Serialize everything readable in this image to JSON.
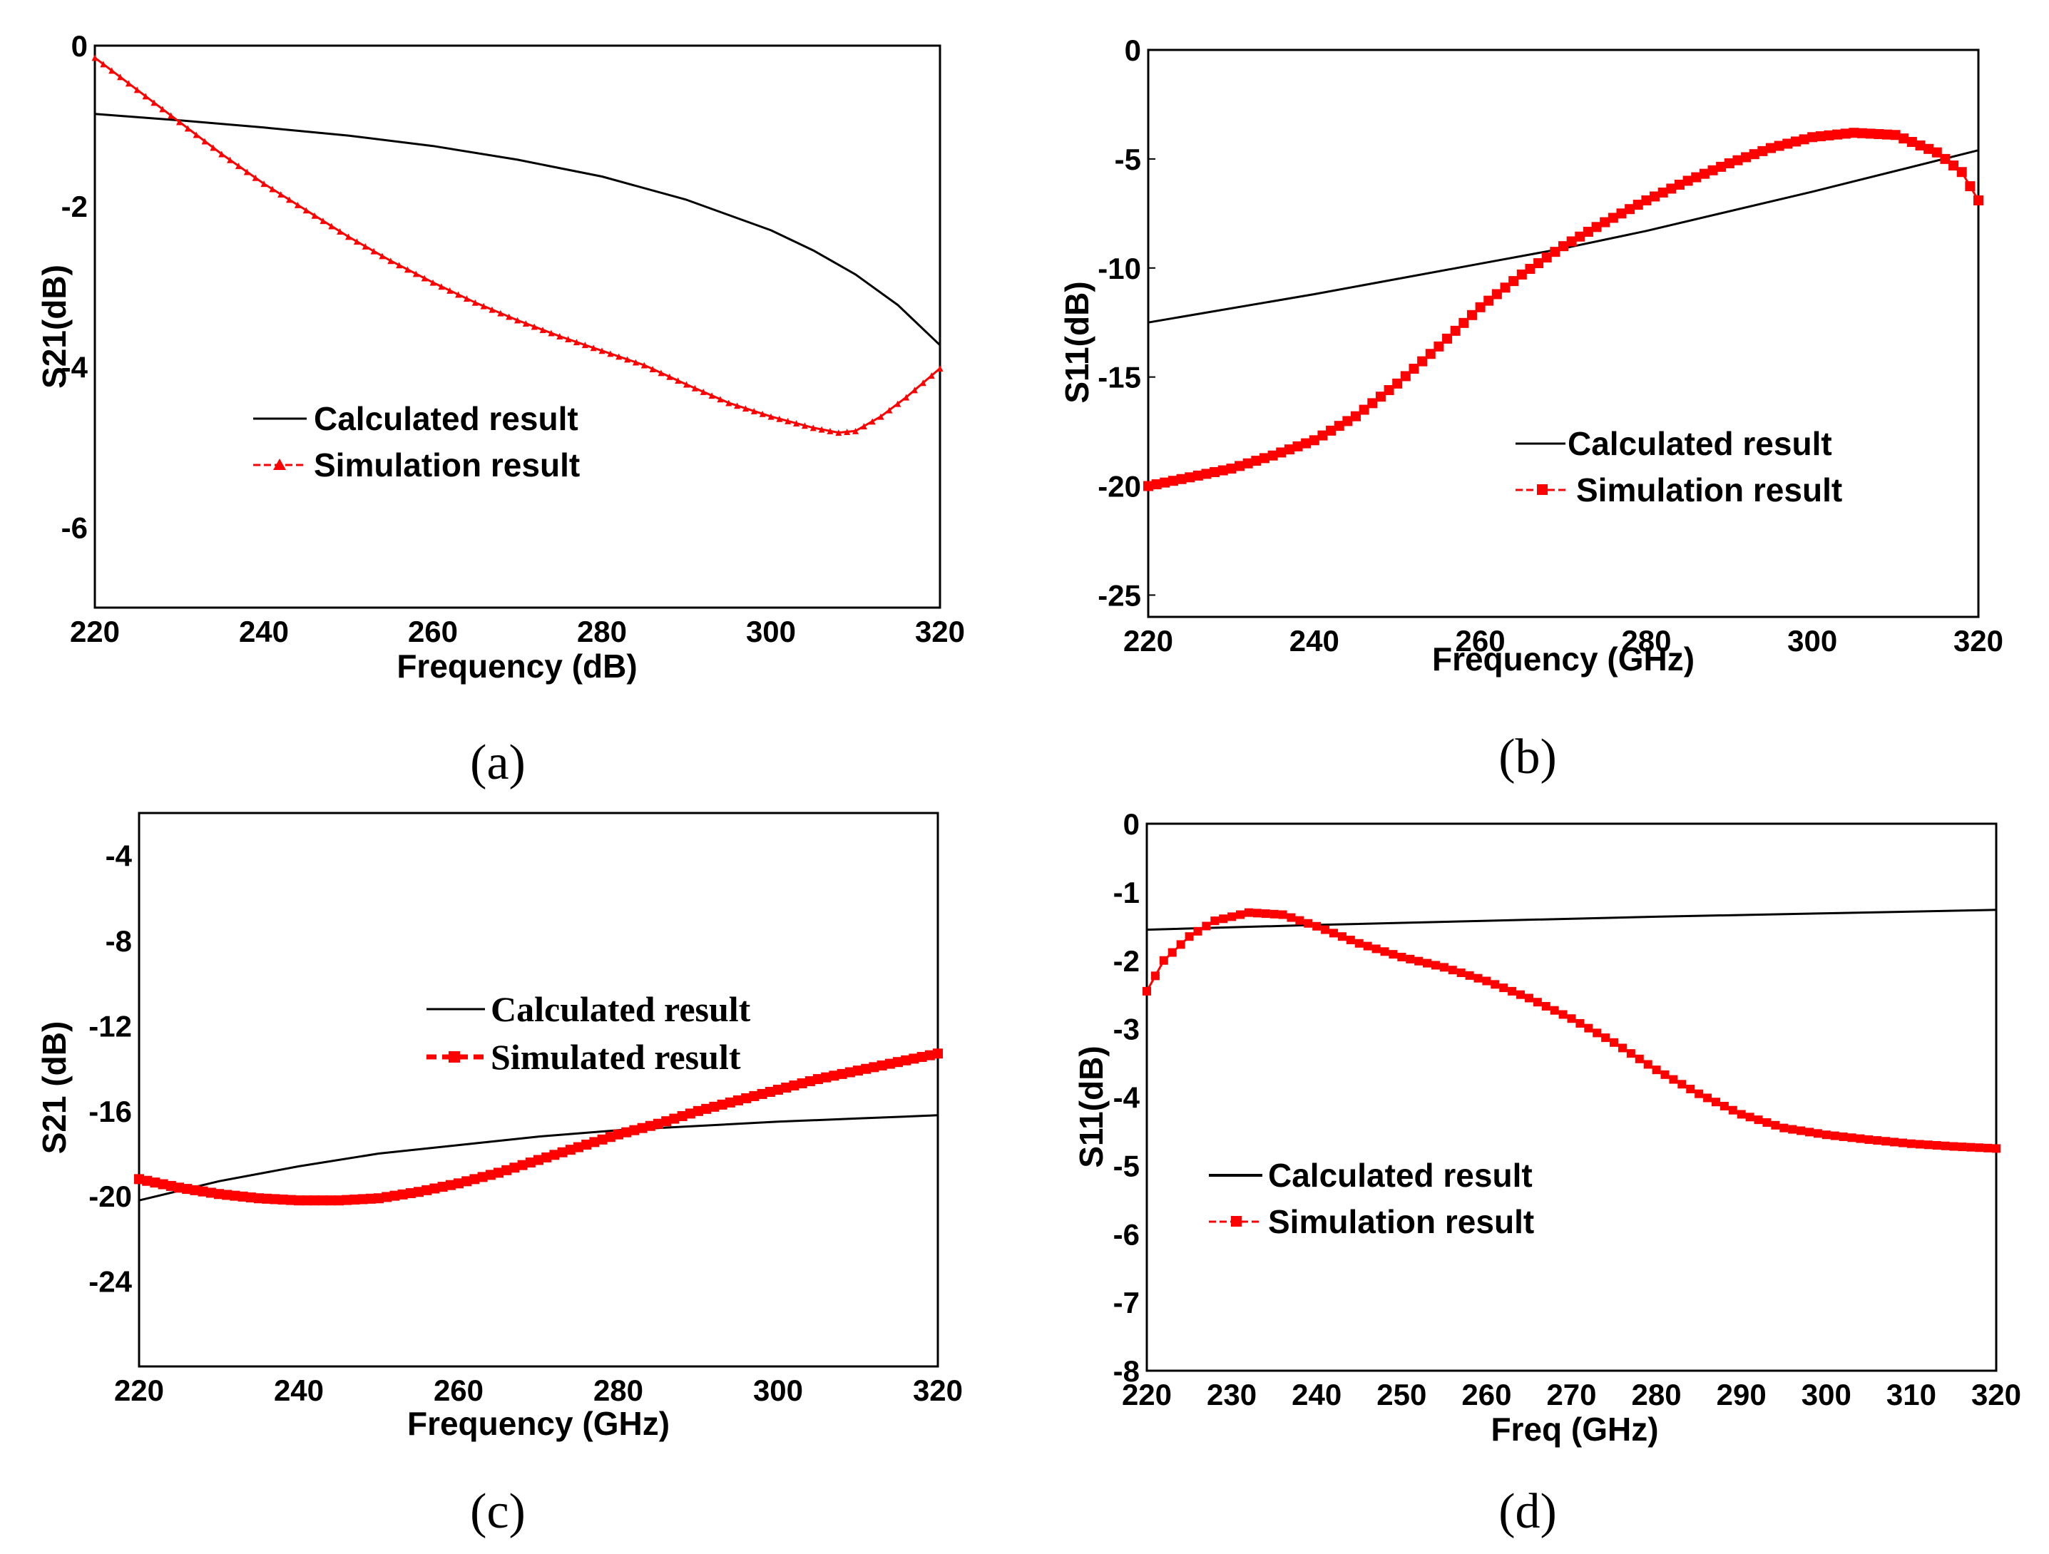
{
  "colors": {
    "calculated": "#000000",
    "simulation": "#ff0000",
    "axis": "#000000",
    "background": "#ffffff"
  },
  "chart_data": [
    {
      "type": "line",
      "panel_label": "(a)",
      "xlabel": "Frequency (dB)",
      "ylabel": "S21(dB)",
      "xlim": [
        220,
        320
      ],
      "ylim": [
        -7,
        0
      ],
      "xticks": [
        220,
        240,
        260,
        280,
        300,
        320
      ],
      "xtick_labels": [
        "220",
        "240",
        "260",
        "280",
        "300",
        "320"
      ],
      "yticks": [
        0,
        -2,
        -4,
        -6
      ],
      "ytick_labels": [
        "0",
        "-2",
        "-4",
        "-6"
      ],
      "legend": {
        "calculated": "Calculated result",
        "simulation": "Simulation result"
      },
      "series": [
        {
          "name": "Calculated result",
          "style": "line",
          "x": [
            220,
            230,
            240,
            250,
            260,
            270,
            280,
            290,
            300,
            305,
            310,
            315,
            320
          ],
          "y": [
            -0.85,
            -0.93,
            -1.02,
            -1.12,
            -1.25,
            -1.42,
            -1.63,
            -1.92,
            -2.3,
            -2.55,
            -2.85,
            -3.23,
            -3.73
          ]
        },
        {
          "name": "Simulation result",
          "style": "line-triangle",
          "x": [
            220,
            225,
            230,
            235,
            240,
            245,
            250,
            255,
            260,
            265,
            270,
            275,
            280,
            285,
            290,
            295,
            300,
            305,
            308,
            310,
            313,
            316,
            320
          ],
          "y": [
            -0.15,
            -0.55,
            -0.95,
            -1.35,
            -1.72,
            -2.05,
            -2.38,
            -2.68,
            -2.95,
            -3.2,
            -3.42,
            -3.62,
            -3.8,
            -3.98,
            -4.22,
            -4.45,
            -4.62,
            -4.76,
            -4.82,
            -4.8,
            -4.62,
            -4.38,
            -4.02
          ]
        }
      ]
    },
    {
      "type": "line",
      "panel_label": "(b)",
      "xlabel": "Frequency (GHz)",
      "ylabel": "S11(dB)",
      "xlim": [
        220,
        320
      ],
      "ylim": [
        -26,
        0
      ],
      "xticks": [
        220,
        240,
        260,
        280,
        300,
        320
      ],
      "xtick_labels": [
        "220",
        "240",
        "260",
        "280",
        "300",
        "320"
      ],
      "yticks": [
        0,
        -5,
        -10,
        -15,
        -20,
        -25
      ],
      "ytick_labels": [
        "0",
        "-5",
        "-10",
        "-15",
        "-20",
        "-25"
      ],
      "legend": {
        "calculated": "Calculated result",
        "simulation": "Simulation result"
      },
      "series": [
        {
          "name": "Calculated result",
          "style": "line",
          "x": [
            220,
            240,
            260,
            270,
            280,
            300,
            320
          ],
          "y": [
            -12.5,
            -11.2,
            -9.8,
            -9.1,
            -8.3,
            -6.5,
            -4.6
          ]
        },
        {
          "name": "Simulation result",
          "style": "line-square",
          "x": [
            220,
            225,
            230,
            235,
            240,
            245,
            250,
            255,
            260,
            265,
            270,
            275,
            280,
            285,
            290,
            295,
            300,
            305,
            310,
            315,
            318,
            320
          ],
          "y": [
            -20,
            -19.6,
            -19.2,
            -18.6,
            -17.9,
            -16.8,
            -15.3,
            -13.6,
            -11.8,
            -10.3,
            -9.0,
            -7.9,
            -6.9,
            -6.0,
            -5.2,
            -4.5,
            -4.0,
            -3.8,
            -3.9,
            -4.7,
            -5.6,
            -6.9
          ]
        }
      ]
    },
    {
      "type": "line",
      "panel_label": "(c)",
      "xlabel": "Frequency (GHz)",
      "ylabel": "S21 (dB)",
      "xlim": [
        220,
        320
      ],
      "ylim": [
        -28,
        -2
      ],
      "xticks": [
        220,
        240,
        260,
        280,
        300,
        320
      ],
      "xtick_labels": [
        "220",
        "240",
        "260",
        "280",
        "300",
        "320"
      ],
      "yticks": [
        -4,
        -8,
        -12,
        -16,
        -20,
        -24
      ],
      "ytick_labels": [
        "-4",
        "-8",
        "-12",
        "-16",
        "-20",
        "-24"
      ],
      "legend": {
        "calculated": "Calculated result",
        "simulation": "Simulated result"
      },
      "series": [
        {
          "name": "Calculated result",
          "style": "line",
          "x": [
            220,
            230,
            240,
            250,
            260,
            270,
            280,
            290,
            300,
            310,
            320
          ],
          "y": [
            -20.2,
            -19.3,
            -18.6,
            -18.0,
            -17.6,
            -17.2,
            -16.9,
            -16.7,
            -16.5,
            -16.35,
            -16.2
          ]
        },
        {
          "name": "Simulated result",
          "style": "line-square",
          "x": [
            220,
            225,
            230,
            235,
            240,
            245,
            250,
            255,
            260,
            265,
            270,
            275,
            280,
            285,
            290,
            295,
            300,
            305,
            310,
            315,
            320
          ],
          "y": [
            -19.2,
            -19.6,
            -19.9,
            -20.1,
            -20.2,
            -20.2,
            -20.1,
            -19.8,
            -19.4,
            -18.9,
            -18.3,
            -17.7,
            -17.1,
            -16.6,
            -16.0,
            -15.5,
            -15.0,
            -14.5,
            -14.1,
            -13.7,
            -13.3
          ]
        }
      ]
    },
    {
      "type": "line",
      "panel_label": "(d)",
      "xlabel": "Freq (GHz)",
      "ylabel": "S11(dB)",
      "xlim": [
        220,
        320
      ],
      "ylim": [
        -8,
        0
      ],
      "xticks": [
        220,
        230,
        240,
        250,
        260,
        270,
        280,
        290,
        300,
        310,
        320
      ],
      "xtick_labels": [
        "220",
        "230",
        "240",
        "250",
        "260",
        "270",
        "280",
        "290",
        "300",
        "310",
        "320"
      ],
      "yticks": [
        0,
        -1,
        -2,
        -3,
        -4,
        -5,
        -6,
        -7,
        -8
      ],
      "ytick_labels": [
        "0",
        "-1",
        "-2",
        "-3",
        "-4",
        "-5",
        "-6",
        "-7",
        "-8"
      ],
      "legend": {
        "calculated": "Calculated result",
        "simulation": "Simulation result"
      },
      "series": [
        {
          "name": "Calculated result",
          "style": "line",
          "x": [
            220,
            240,
            260,
            280,
            300,
            320
          ],
          "y": [
            -1.55,
            -1.48,
            -1.42,
            -1.36,
            -1.31,
            -1.26
          ]
        },
        {
          "name": "Simulation result",
          "style": "line-square",
          "x": [
            220,
            222,
            225,
            228,
            232,
            236,
            240,
            245,
            250,
            255,
            260,
            265,
            270,
            275,
            280,
            285,
            290,
            295,
            300,
            305,
            310,
            315,
            320
          ],
          "y": [
            -2.45,
            -2.0,
            -1.65,
            -1.42,
            -1.3,
            -1.33,
            -1.5,
            -1.75,
            -1.95,
            -2.1,
            -2.3,
            -2.55,
            -2.85,
            -3.2,
            -3.6,
            -3.95,
            -4.25,
            -4.45,
            -4.55,
            -4.62,
            -4.68,
            -4.72,
            -4.75
          ]
        }
      ]
    }
  ]
}
